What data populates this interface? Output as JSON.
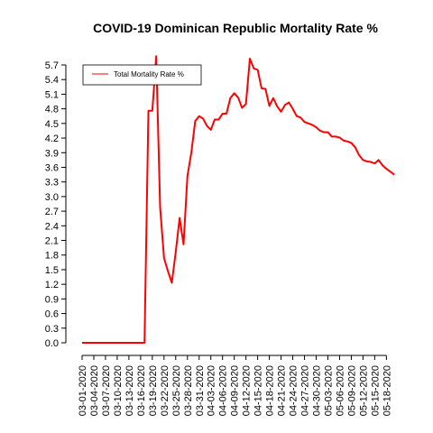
{
  "chart_data": {
    "type": "line",
    "title": "COVID-19 Dominican Republic Mortality Rate %",
    "xlabel": "",
    "ylabel": "",
    "ylim": [
      0,
      5.7
    ],
    "y_ticks": [
      "0.0",
      "0.3",
      "0.6",
      "0.9",
      "1.2",
      "1.5",
      "1.8",
      "2.1",
      "2.4",
      "2.7",
      "3.0",
      "3.3",
      "3.6",
      "3.9",
      "4.2",
      "4.5",
      "4.8",
      "5.1",
      "5.4",
      "5.7"
    ],
    "x_ticks": [
      "03-01-2020",
      "03-04-2020",
      "03-07-2020",
      "03-10-2020",
      "03-13-2020",
      "03-16-2020",
      "03-19-2020",
      "03-22-2020",
      "03-25-2020",
      "03-28-2020",
      "03-31-2020",
      "04-03-2020",
      "04-06-2020",
      "04-09-2020",
      "04-12-2020",
      "04-15-2020",
      "04-18-2020",
      "04-21-2020",
      "04-24-2020",
      "04-27-2020",
      "04-30-2020",
      "05-03-2020",
      "05-06-2020",
      "05-09-2020",
      "05-12-2020",
      "05-15-2020",
      "05-18-2020"
    ],
    "legend": {
      "position": "top-left",
      "entries": [
        {
          "label": "Total Mortality Rate %",
          "color": "#ff0000"
        }
      ]
    },
    "series": [
      {
        "name": "Total Mortality Rate %",
        "color": "#ff0000",
        "x": [
          "03-01-2020",
          "03-02-2020",
          "03-03-2020",
          "03-04-2020",
          "03-05-2020",
          "03-06-2020",
          "03-07-2020",
          "03-08-2020",
          "03-09-2020",
          "03-10-2020",
          "03-11-2020",
          "03-12-2020",
          "03-13-2020",
          "03-14-2020",
          "03-15-2020",
          "03-16-2020",
          "03-17-2020",
          "03-18-2020",
          "03-19-2020",
          "03-20-2020",
          "03-21-2020",
          "03-22-2020",
          "03-23-2020",
          "03-24-2020",
          "03-25-2020",
          "03-26-2020",
          "03-27-2020",
          "03-28-2020",
          "03-29-2020",
          "03-30-2020",
          "03-31-2020",
          "04-01-2020",
          "04-02-2020",
          "04-03-2020",
          "04-04-2020",
          "04-05-2020",
          "04-06-2020",
          "04-07-2020",
          "04-08-2020",
          "04-09-2020",
          "04-10-2020",
          "04-11-2020",
          "04-12-2020",
          "04-13-2020",
          "04-14-2020",
          "04-15-2020",
          "04-16-2020",
          "04-17-2020",
          "04-18-2020",
          "04-19-2020",
          "04-20-2020",
          "04-21-2020",
          "04-22-2020",
          "04-23-2020",
          "04-24-2020",
          "04-25-2020",
          "04-26-2020",
          "04-27-2020",
          "04-28-2020",
          "04-29-2020",
          "04-30-2020",
          "05-01-2020",
          "05-02-2020",
          "05-03-2020",
          "05-04-2020",
          "05-05-2020",
          "05-06-2020",
          "05-07-2020",
          "05-08-2020",
          "05-09-2020",
          "05-10-2020",
          "05-11-2020",
          "05-12-2020",
          "05-13-2020",
          "05-14-2020",
          "05-15-2020",
          "05-16-2020",
          "05-17-2020",
          "05-18-2020",
          "05-19-2020",
          "05-20-2020"
        ],
        "values": [
          0,
          0,
          0,
          0,
          0,
          0,
          0,
          0,
          0,
          0,
          0,
          0,
          0,
          0,
          0,
          0,
          0,
          4.76,
          4.76,
          5.88,
          2.78,
          1.74,
          1.47,
          1.23,
          1.86,
          2.56,
          2.02,
          3.42,
          3.9,
          4.55,
          4.65,
          4.6,
          4.45,
          4.37,
          4.58,
          4.58,
          4.7,
          4.7,
          5.02,
          5.12,
          5.03,
          4.82,
          4.9,
          5.83,
          5.63,
          5.6,
          5.22,
          5.21,
          4.86,
          5.02,
          4.85,
          4.74,
          4.88,
          4.93,
          4.8,
          4.65,
          4.62,
          4.53,
          4.5,
          4.47,
          4.42,
          4.35,
          4.32,
          4.32,
          4.23,
          4.23,
          4.21,
          4.15,
          4.13,
          4.1,
          4.01,
          3.85,
          3.75,
          3.72,
          3.71,
          3.68,
          3.75,
          3.64,
          3.57,
          3.51,
          3.45
        ]
      }
    ]
  }
}
